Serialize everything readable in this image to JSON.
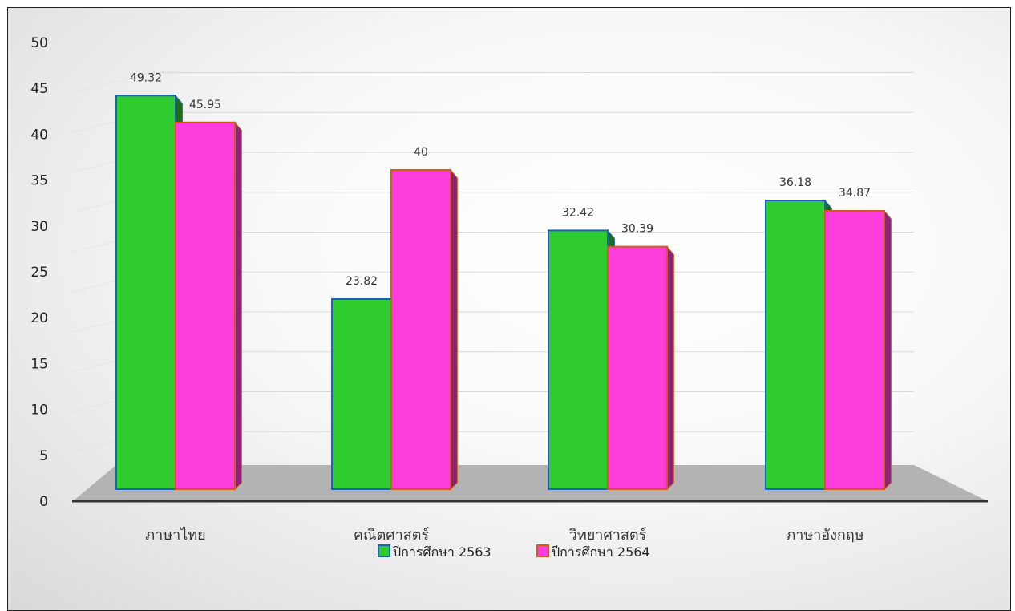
{
  "chart_data": {
    "type": "bar",
    "style": "3d-clustered-column",
    "categories": [
      "ภาษาไทย",
      "คณิตศาสตร์",
      "วิทยาศาสตร์",
      "ภาษาอังกฤษ"
    ],
    "series": [
      {
        "name": "ปีการศึกษา 2563",
        "values": [
          49.32,
          23.82,
          32.42,
          36.18
        ],
        "color": "#2ecc2e",
        "border": "#1f5fbf"
      },
      {
        "name": "ปีการศึกษา 2564",
        "values": [
          45.95,
          40,
          30.39,
          34.87
        ],
        "color": "#ff3ddc",
        "border": "#d05a1a"
      }
    ],
    "data_labels": [
      [
        "49.32",
        "23.82",
        "32.42",
        "36.18"
      ],
      [
        "45.95",
        "40",
        "30.39",
        "34.87"
      ]
    ],
    "yticks": [
      "0",
      "5",
      "10",
      "15",
      "20",
      "25",
      "30",
      "35",
      "40",
      "45",
      "50"
    ],
    "ylim": [
      0,
      50
    ],
    "grid": true,
    "legend": "bottom-center",
    "colors": {
      "floor": "#b3b3b3",
      "axis": "#333333",
      "grid": "#d9d9d9"
    }
  }
}
